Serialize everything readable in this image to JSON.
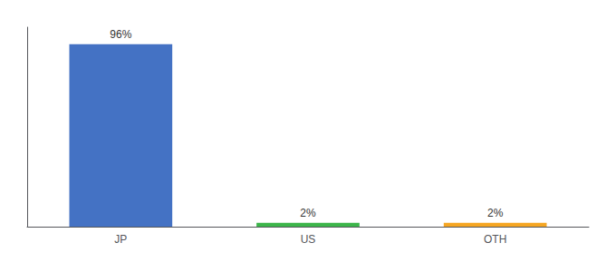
{
  "chart_data": {
    "type": "bar",
    "categories": [
      "JP",
      "US",
      "OTH"
    ],
    "values": [
      96,
      2,
      2
    ],
    "value_labels": [
      "96%",
      "2%",
      "2%"
    ],
    "data_labels": true,
    "colors": [
      "#4472C4",
      "#3CB54A",
      "#F5A623"
    ],
    "ylim": [
      0,
      105
    ],
    "tick_labels": "x",
    "grid": false
  }
}
